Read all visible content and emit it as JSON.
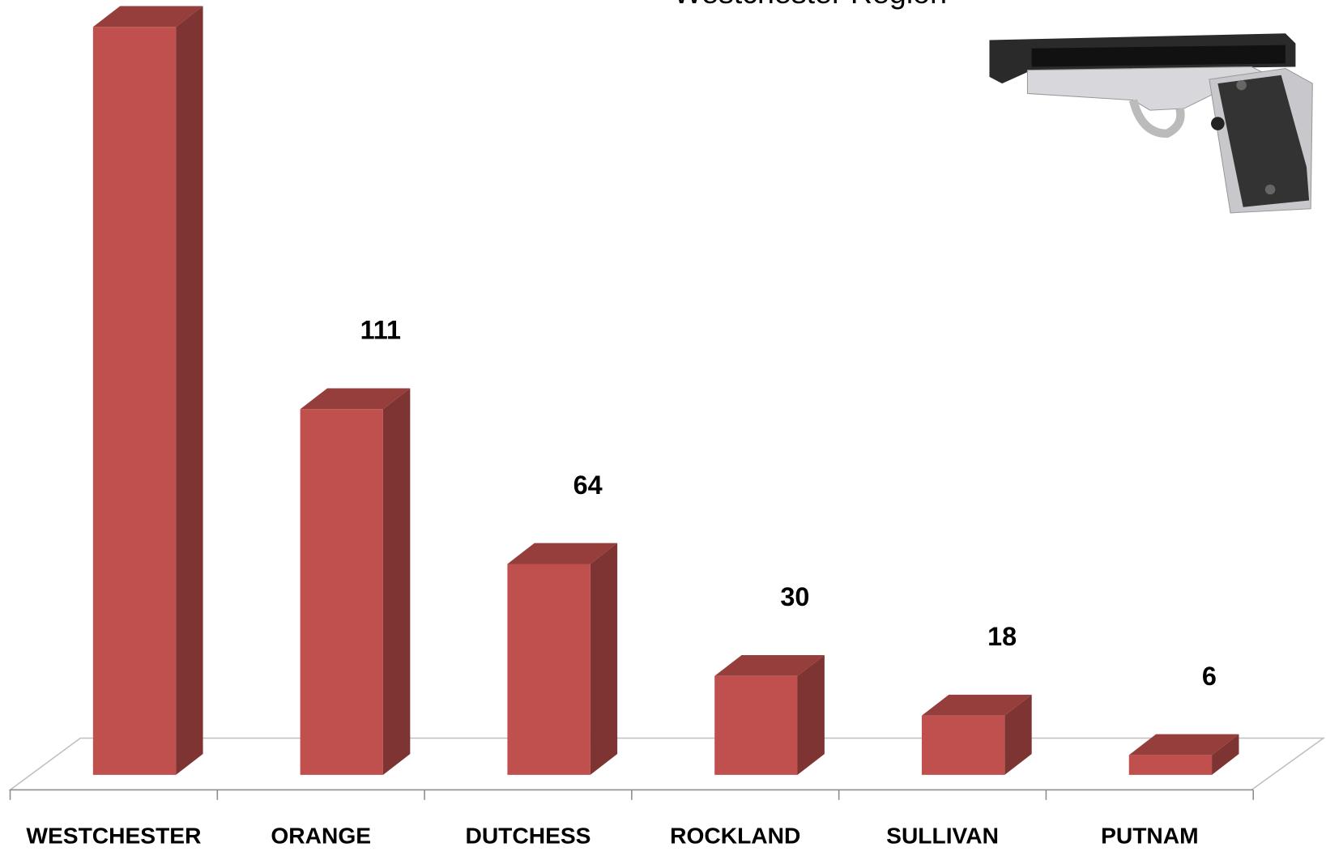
{
  "chart_data": {
    "type": "bar3d",
    "title": "Westchester Region",
    "categories": [
      "WESTCHESTER",
      "ORANGE",
      "DUTCHESS",
      "ROCKLAND",
      "SULLIVAN",
      "PUTNAM"
    ],
    "values": [
      227,
      111,
      64,
      30,
      18,
      6
    ],
    "color": "#c0504d"
  }
}
